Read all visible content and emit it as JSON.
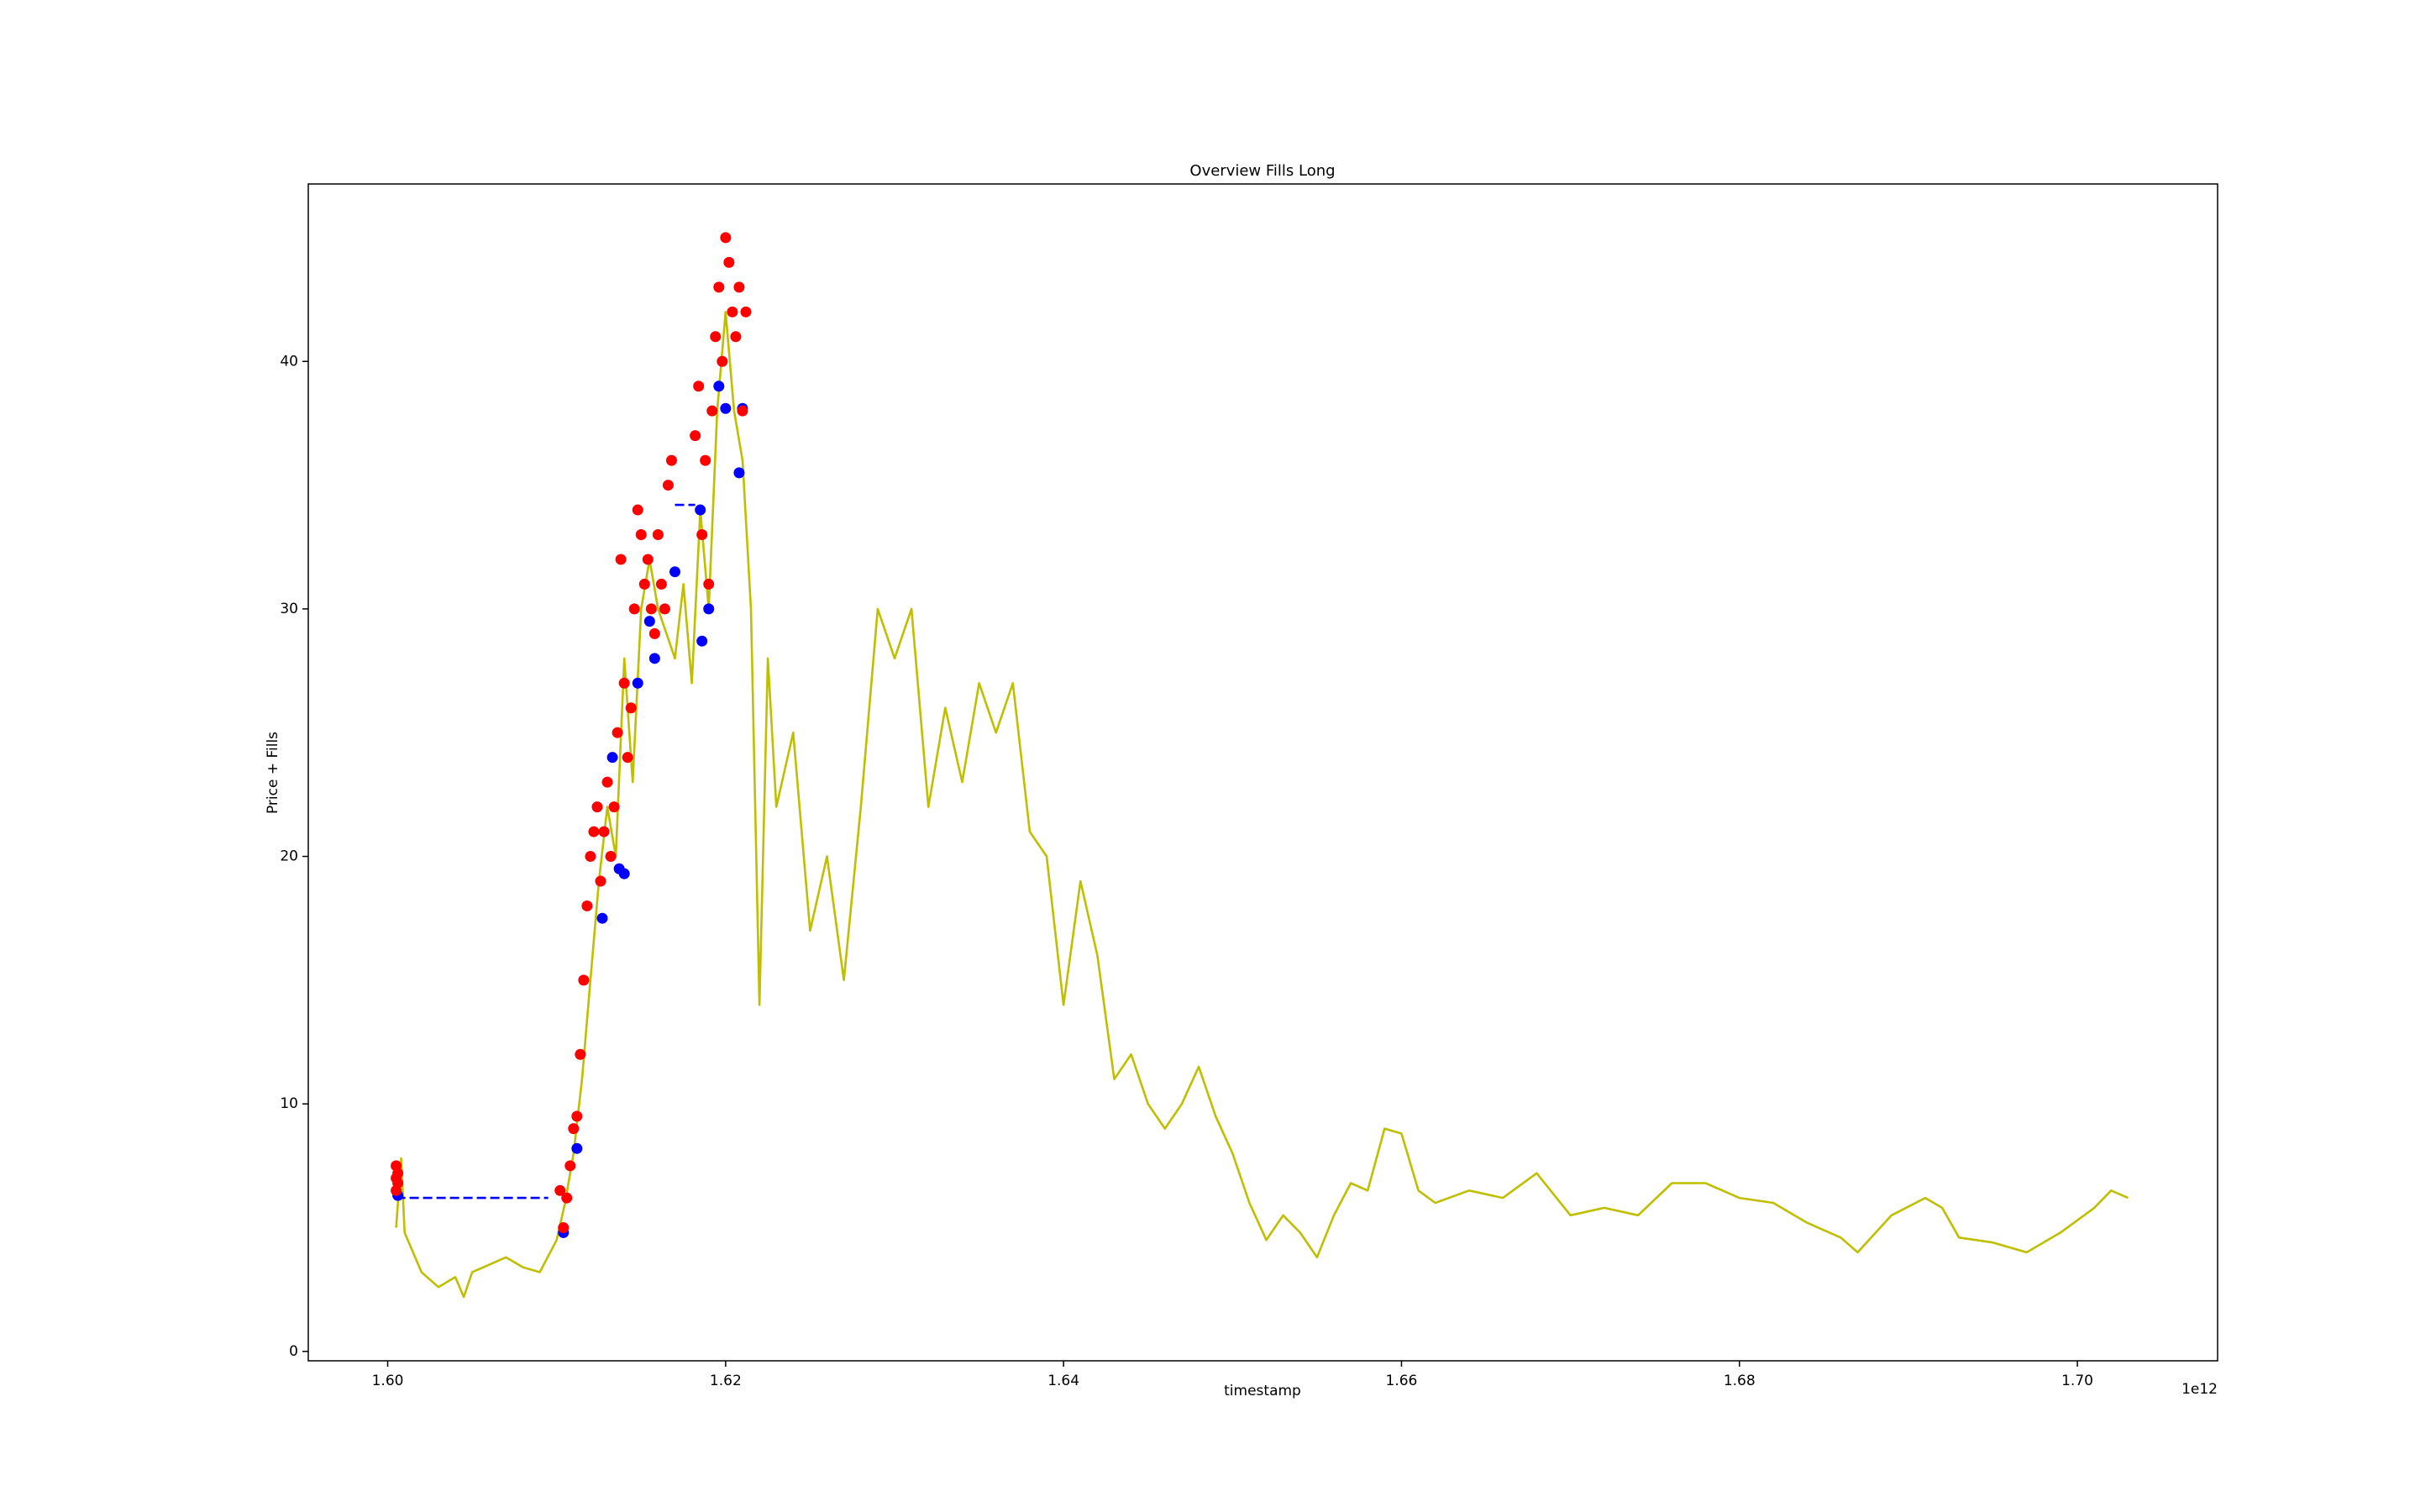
{
  "chart_data": {
    "type": "line",
    "title": "Overview Fills Long",
    "x_label": "timestamp",
    "y_label": "Price + Fills",
    "x_offset_label": "1e12",
    "xlim": [
      1.5953,
      1.7083
    ],
    "ylim": [
      -0.38,
      47.17
    ],
    "xticks": [
      {
        "value": 1.6,
        "label": "1.60"
      },
      {
        "value": 1.62,
        "label": "1.62"
      },
      {
        "value": 1.64,
        "label": "1.64"
      },
      {
        "value": 1.66,
        "label": "1.66"
      },
      {
        "value": 1.68,
        "label": "1.68"
      },
      {
        "value": 1.7,
        "label": "1.70"
      }
    ],
    "yticks": [
      0,
      10,
      20,
      30,
      40
    ],
    "series": [
      {
        "type": "line",
        "color": "#bfbf00",
        "x": [
          1.6005,
          1.6008,
          1.601,
          1.6015,
          1.602,
          1.603,
          1.604,
          1.6045,
          1.605,
          1.606,
          1.607,
          1.608,
          1.609,
          1.61,
          1.6105,
          1.611,
          1.6115,
          1.612,
          1.6125,
          1.613,
          1.6135,
          1.614,
          1.6145,
          1.615,
          1.6155,
          1.616,
          1.617,
          1.6175,
          1.618,
          1.6185,
          1.619,
          1.6195,
          1.62,
          1.6205,
          1.621,
          1.6215,
          1.622,
          1.6225,
          1.623,
          1.624,
          1.625,
          1.626,
          1.627,
          1.628,
          1.629,
          1.63,
          1.631,
          1.632,
          1.633,
          1.634,
          1.635,
          1.636,
          1.637,
          1.638,
          1.639,
          1.64,
          1.641,
          1.642,
          1.643,
          1.644,
          1.645,
          1.646,
          1.647,
          1.648,
          1.649,
          1.65,
          1.651,
          1.652,
          1.653,
          1.654,
          1.655,
          1.656,
          1.657,
          1.658,
          1.659,
          1.66,
          1.661,
          1.662,
          1.664,
          1.666,
          1.668,
          1.67,
          1.672,
          1.674,
          1.676,
          1.678,
          1.68,
          1.682,
          1.684,
          1.686,
          1.687,
          1.689,
          1.691,
          1.692,
          1.693,
          1.695,
          1.697,
          1.699,
          1.701,
          1.702,
          1.703
        ],
        "values": [
          5.0,
          7.8,
          4.8,
          4.0,
          3.2,
          2.6,
          3.0,
          2.2,
          3.2,
          3.5,
          3.8,
          3.4,
          3.2,
          4.5,
          6.0,
          8.0,
          11,
          15,
          19,
          22,
          20,
          28,
          23,
          30,
          32,
          30,
          28,
          31,
          27,
          34,
          30,
          38,
          42,
          38,
          36,
          30,
          14,
          28,
          22,
          25,
          17,
          20,
          15,
          22,
          30,
          28,
          30,
          22,
          26,
          23,
          27,
          25,
          27,
          21,
          20,
          14,
          19,
          16,
          11,
          12,
          10,
          9,
          10,
          11.5,
          9.5,
          8,
          6,
          4.5,
          5.5,
          4.8,
          3.8,
          5.5,
          6.8,
          6.5,
          9,
          8.8,
          6.5,
          6.0,
          6.5,
          6.2,
          7.2,
          5.5,
          5.8,
          5.5,
          6.8,
          6.8,
          6.2,
          6.0,
          5.2,
          4.6,
          4.0,
          5.5,
          6.2,
          5.8,
          4.6,
          4.4,
          4.0,
          4.8,
          5.8,
          6.5,
          6.2
        ]
      },
      {
        "type": "dashed",
        "color": "#0000ff",
        "x": [
          1.6005,
          1.6095
        ],
        "values": [
          6.2,
          6.2
        ]
      },
      {
        "type": "dashed",
        "color": "#0000ff",
        "x": [
          1.617,
          1.6182
        ],
        "values": [
          34.2,
          34.2
        ]
      },
      {
        "type": "scatter",
        "color": "#0000ff",
        "x": [
          1.6006,
          1.6104,
          1.6112,
          1.6127,
          1.6133,
          1.6137,
          1.614,
          1.6148,
          1.6155,
          1.6158,
          1.617,
          1.6185,
          1.6186,
          1.619,
          1.6196,
          1.62,
          1.6208,
          1.621
        ],
        "values": [
          6.3,
          4.8,
          8.2,
          17.5,
          24,
          19.5,
          19.3,
          27,
          29.5,
          28,
          31.5,
          34,
          28.7,
          30,
          39,
          38.1,
          35.5,
          38.1
        ]
      },
      {
        "type": "scatter",
        "color": "#ff0000",
        "x": [
          1.6005,
          1.6005,
          1.6005,
          1.6006,
          1.6006,
          1.6102,
          1.6104,
          1.6106,
          1.6108,
          1.611,
          1.6112,
          1.6114,
          1.6116,
          1.6118,
          1.612,
          1.6122,
          1.6124,
          1.6126,
          1.6128,
          1.613,
          1.6132,
          1.6134,
          1.6136,
          1.6138,
          1.614,
          1.6142,
          1.6144,
          1.6146,
          1.6148,
          1.615,
          1.6152,
          1.6154,
          1.6156,
          1.6158,
          1.616,
          1.6162,
          1.6164,
          1.6166,
          1.6168,
          1.6182,
          1.6184,
          1.6186,
          1.6188,
          1.619,
          1.6192,
          1.6194,
          1.6196,
          1.6198,
          1.62,
          1.6202,
          1.6204,
          1.6206,
          1.6208,
          1.621,
          1.6212
        ],
        "values": [
          6.5,
          7.0,
          7.5,
          6.8,
          7.2,
          6.5,
          5.0,
          6.2,
          7.5,
          9.0,
          9.5,
          12,
          15,
          18,
          20,
          21,
          22,
          19,
          21,
          23,
          20,
          22,
          25,
          32,
          27,
          24,
          26,
          30,
          34,
          33,
          31,
          32,
          30,
          29,
          33,
          31,
          30,
          35,
          36,
          37,
          39,
          33,
          36,
          31,
          38,
          41,
          43,
          40,
          45,
          44,
          42,
          41,
          43,
          38,
          42
        ]
      }
    ]
  }
}
